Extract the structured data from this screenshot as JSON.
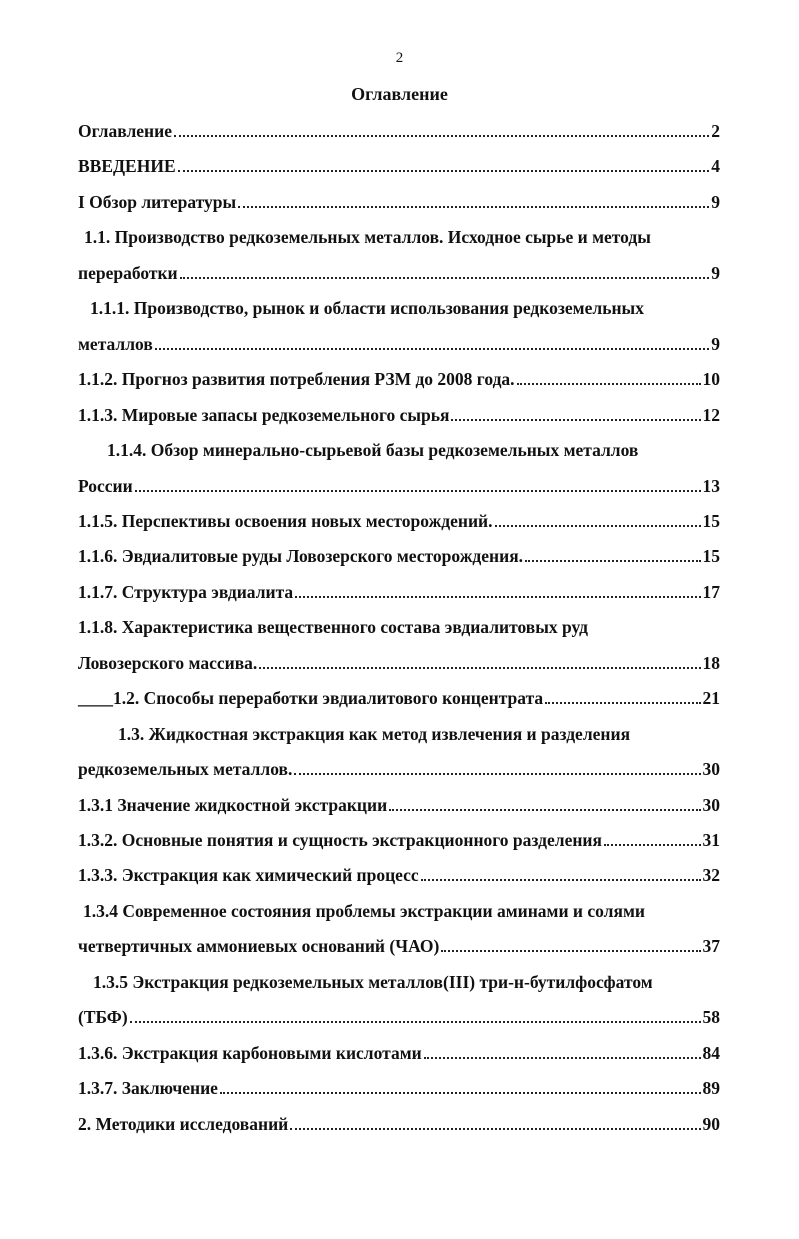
{
  "page_number": "2",
  "title": "Оглавление",
  "entries": [
    {
      "lines": [
        "Оглавление"
      ],
      "page": 2
    },
    {
      "lines": [
        "ВВЕДЕНИЕ"
      ],
      "page": 4
    },
    {
      "lines": [
        "I Обзор литературы"
      ],
      "page": 9
    },
    {
      "lines": [
        "1.1. Производство редкоземельных металлов. Исходное сырье и методы",
        "переработки"
      ],
      "page": 9
    },
    {
      "lines": [
        "1.1.1. Производство, рынок и области использования редкоземельных",
        "металлов"
      ],
      "page": 9
    },
    {
      "lines": [
        "1.1.2. Прогноз развития потребления РЗМ до 2008 года."
      ],
      "page": 10
    },
    {
      "lines": [
        "1.1.3. Мировые запасы редкоземельного сырья"
      ],
      "page": 12
    },
    {
      "lines": [
        "1.1.4. Обзор минерально-сырьевой базы редкоземельных металлов",
        "России"
      ],
      "page": 13
    },
    {
      "lines": [
        "1.1.5. Перспективы освоения новых месторождений."
      ],
      "page": 15
    },
    {
      "lines": [
        "1.1.6. Эвдиалитовые руды Ловозерского месторождения."
      ],
      "page": 15
    },
    {
      "lines": [
        "1.1.7. Структура эвдиалита"
      ],
      "page": 17
    },
    {
      "lines": [
        "1.1.8. Характеристика вещественного состава эвдиалитовых руд",
        "Ловозерского массива."
      ],
      "page": 18
    },
    {
      "lines": [
        "____1.2. Способы переработки эвдиалитового концентрата"
      ],
      "page": 21
    },
    {
      "lines": [
        "1.3. Жидкостная экстракция как метод извлечения и разделения",
        "редкоземельных металлов."
      ],
      "page": 30
    },
    {
      "lines": [
        "1.3.1 Значение жидкостной экстракции"
      ],
      "page": 30
    },
    {
      "lines": [
        "1.3.2. Основные понятия и сущность экстракционного разделения"
      ],
      "page": 31
    },
    {
      "lines": [
        "1.3.3. Экстракция как химический процесс"
      ],
      "page": 32
    },
    {
      "lines": [
        "1.3.4 Современное состояния проблемы экстракции аминами и солями",
        "четвертичных аммониевых оснований (ЧАО)"
      ],
      "page": 37
    },
    {
      "lines": [
        "1.3.5 Экстракция редкоземельных металлов(III) три-н-бутилфосфатом",
        "(ТБФ)"
      ],
      "page": 58
    },
    {
      "lines": [
        "1.3.6. Экстракция карбоновыми кислотами"
      ],
      "page": 84
    },
    {
      "lines": [
        "1.3.7. Заключение"
      ],
      "page": 89
    },
    {
      "lines": [
        "2. Методики исследований"
      ],
      "page": 90
    }
  ]
}
